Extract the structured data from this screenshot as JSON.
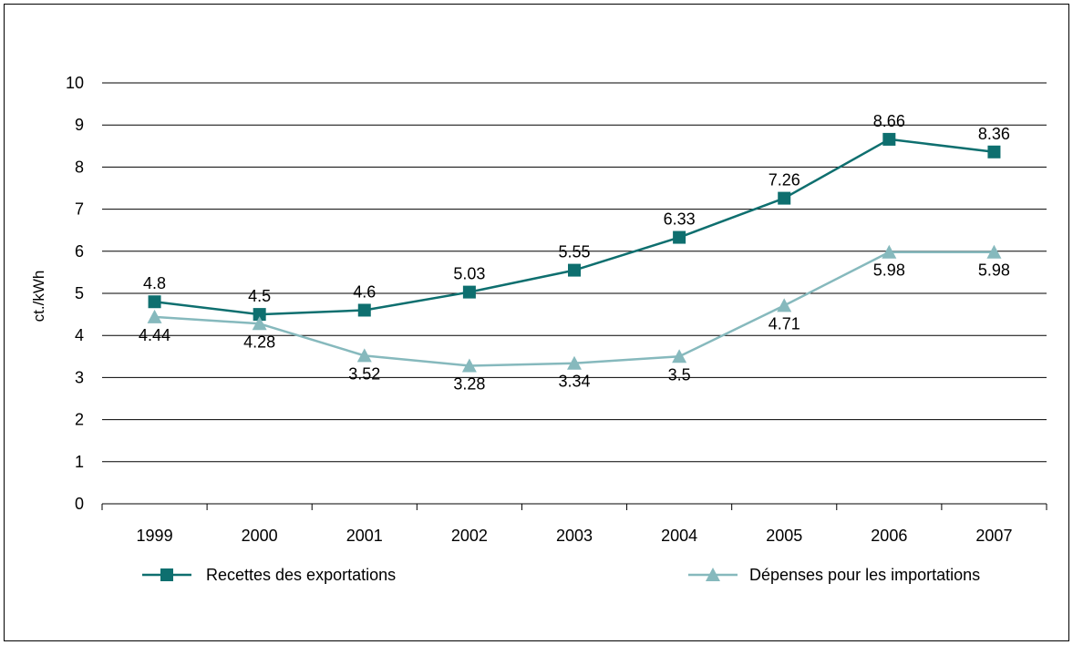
{
  "chart_data": {
    "type": "line",
    "categories": [
      "1999",
      "2000",
      "2001",
      "2002",
      "2003",
      "2004",
      "2005",
      "2006",
      "2007"
    ],
    "series": [
      {
        "name": "Recettes des exportations",
        "values": [
          4.8,
          4.5,
          4.6,
          5.03,
          5.55,
          6.33,
          7.26,
          8.66,
          8.36
        ],
        "labels": [
          "4.8",
          "4.5",
          "4.6",
          "5.03",
          "5.55",
          "6.33",
          "7.26",
          "8.66",
          "8.36"
        ],
        "color": "#0e6f6f",
        "marker": "square",
        "label_position": "above"
      },
      {
        "name": "Dépenses pour les importations",
        "values": [
          4.44,
          4.28,
          3.52,
          3.28,
          3.34,
          3.5,
          4.71,
          5.98,
          5.98
        ],
        "labels": [
          "4.44",
          "4.28",
          "3.52",
          "3.28",
          "3.34",
          "3.5",
          "4.71",
          "5.98",
          "5.98"
        ],
        "color": "#86b9bd",
        "marker": "triangle",
        "label_position": "below"
      }
    ],
    "ylabel": "ct./kWh",
    "xlabel": "",
    "ylim": [
      0,
      10
    ],
    "yticks": [
      "0",
      "1",
      "2",
      "3",
      "4",
      "5",
      "6",
      "7",
      "8",
      "9",
      "10"
    ],
    "grid": true,
    "legend_position": "bottom"
  }
}
